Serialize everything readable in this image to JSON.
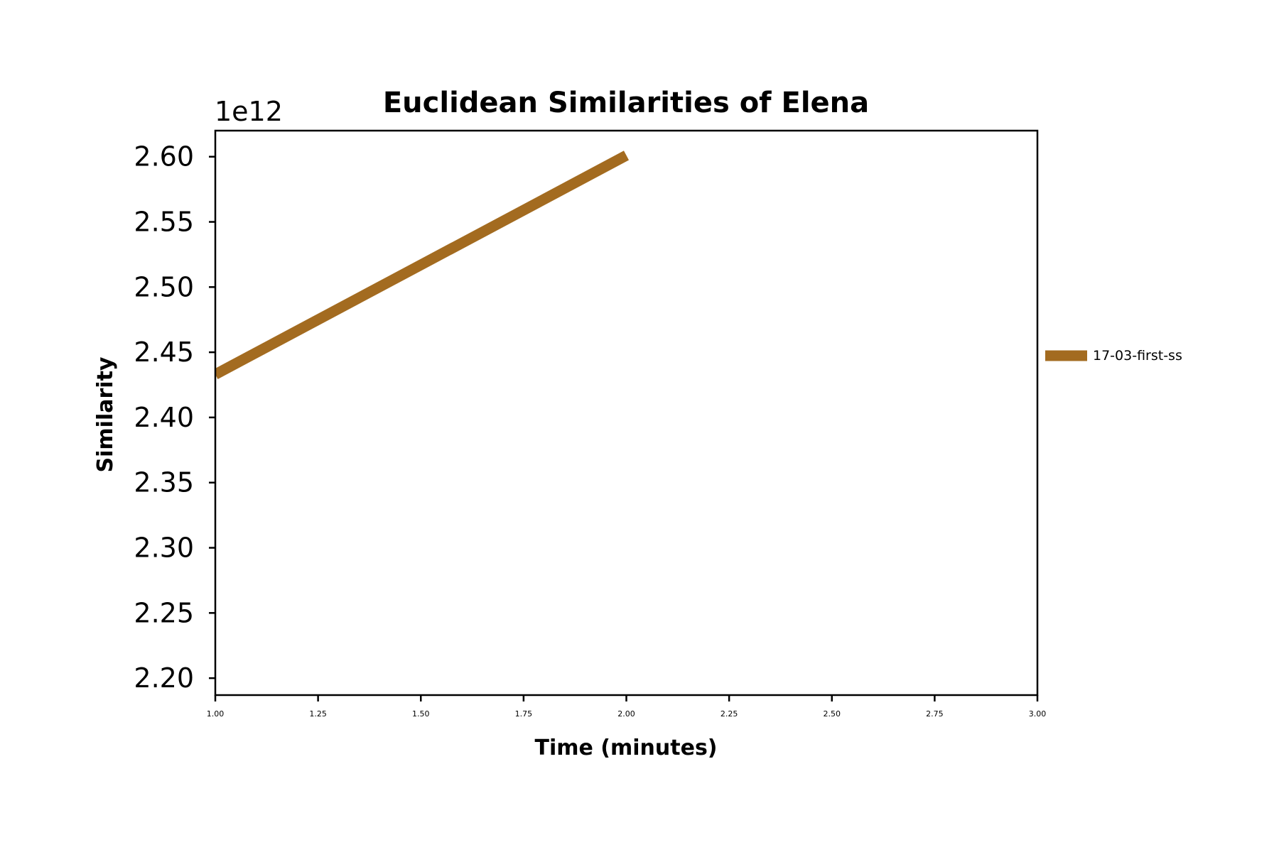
{
  "chart_data": {
    "type": "line",
    "title": "Euclidean Similarities of Elena",
    "xlabel": "Time (minutes)",
    "ylabel": "Similarity",
    "y_offset_label": "1e12",
    "xlim": [
      1.0,
      3.0
    ],
    "ylim": [
      2.187,
      2.62
    ],
    "x_ticks": [
      1.0,
      1.25,
      1.5,
      1.75,
      2.0,
      2.25,
      2.5,
      2.75,
      3.0
    ],
    "x_tick_labels": [
      "1.00",
      "1.25",
      "1.50",
      "1.75",
      "2.00",
      "2.25",
      "2.50",
      "2.75",
      "3.00"
    ],
    "y_ticks": [
      2.2,
      2.25,
      2.3,
      2.35,
      2.4,
      2.45,
      2.5,
      2.55,
      2.6
    ],
    "y_tick_labels": [
      "2.20",
      "2.25",
      "2.30",
      "2.35",
      "2.40",
      "2.45",
      "2.50",
      "2.55",
      "2.60"
    ],
    "grid": false,
    "legend_position": "outside-right",
    "series": [
      {
        "name": "17-03-first-ss",
        "color": "#a36b20",
        "x": [
          1.0,
          2.0
        ],
        "y": [
          2.433,
          2.601
        ]
      }
    ]
  }
}
